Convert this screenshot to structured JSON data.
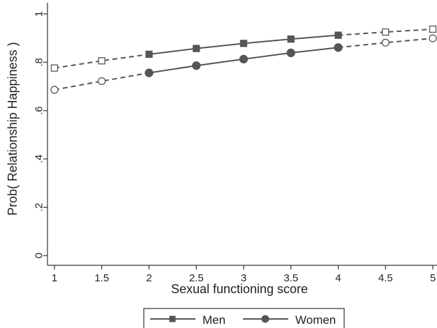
{
  "chart_data": {
    "type": "line",
    "xlabel": "Sexual functioning score",
    "ylabel": "Prob( Relationship Happiness )",
    "xlim": [
      1,
      5
    ],
    "ylim": [
      0,
      1
    ],
    "xticks": [
      "1",
      "1.5",
      "2",
      "2.5",
      "3",
      "3.5",
      "4",
      "4.5",
      "5"
    ],
    "yticks": [
      "0",
      ".2",
      ".4",
      ".6",
      ".8",
      "1"
    ],
    "ytick_values": [
      0,
      0.2,
      0.4,
      0.6,
      0.8,
      1
    ],
    "grid": false,
    "legend_position": "bottom",
    "x": [
      1,
      1.5,
      2,
      2.5,
      3,
      3.5,
      4,
      4.5,
      5
    ],
    "observed_range": [
      2,
      4
    ],
    "series": [
      {
        "name": "Men",
        "marker": "square",
        "color": "#555555",
        "values": [
          0.776,
          0.806,
          0.833,
          0.857,
          0.878,
          0.896,
          0.912,
          0.925,
          0.937
        ]
      },
      {
        "name": "Women",
        "marker": "circle",
        "color": "#555555",
        "values": [
          0.686,
          0.722,
          0.756,
          0.786,
          0.813,
          0.839,
          0.861,
          0.881,
          0.899
        ]
      }
    ]
  }
}
